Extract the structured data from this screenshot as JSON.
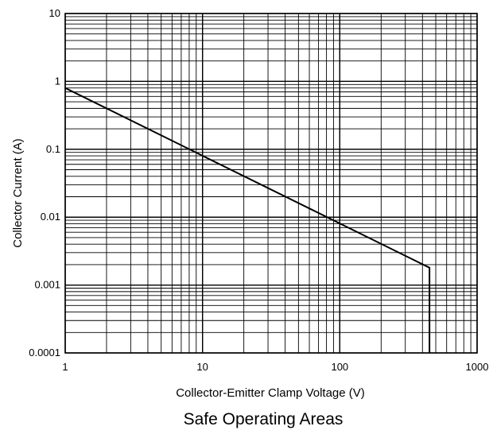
{
  "chart_data": {
    "type": "line",
    "title": "Safe Operating Areas",
    "xlabel": "Collector-Emitter Clamp Voltage (V)",
    "ylabel": "Collector Current (A)",
    "x_scale": "log",
    "y_scale": "log",
    "xlim": [
      1,
      1000
    ],
    "ylim": [
      0.0001,
      10
    ],
    "x_ticks": [
      1,
      10,
      100,
      1000
    ],
    "x_tick_labels": [
      "1",
      "10",
      "100",
      "1000"
    ],
    "y_ticks": [
      0.0001,
      0.001,
      0.01,
      0.1,
      1,
      10
    ],
    "y_tick_labels": [
      "0.0001",
      "0.001",
      "0.01",
      "0.1",
      "1",
      "10"
    ],
    "grid": true,
    "series": [
      {
        "x": [
          1,
          450,
          450
        ],
        "y": [
          0.8,
          0.0018,
          0.0001
        ]
      }
    ],
    "line_color": "#000000"
  }
}
